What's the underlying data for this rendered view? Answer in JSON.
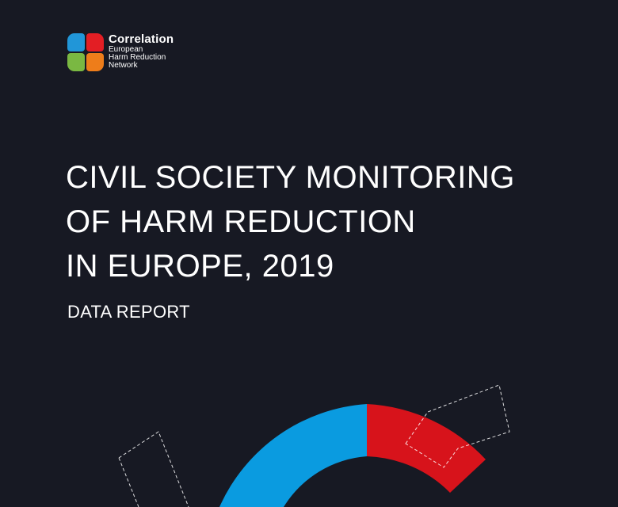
{
  "logo": {
    "name": "Correlation",
    "subtitle_lines": [
      "European",
      "Harm Reduction",
      "Network"
    ],
    "colors": {
      "blue": "#2196d8",
      "red": "#e31e24",
      "green": "#7ab842",
      "orange": "#ee7d1a"
    }
  },
  "report": {
    "title_lines": [
      "CIVIL SOCIETY MONITORING",
      "OF HARM REDUCTION",
      "IN EUROPE, 2019"
    ],
    "subtitle": "DATA REPORT"
  },
  "colors": {
    "background": "#171923",
    "arc_blue": "#0a9be0",
    "arc_red": "#d7131b"
  }
}
